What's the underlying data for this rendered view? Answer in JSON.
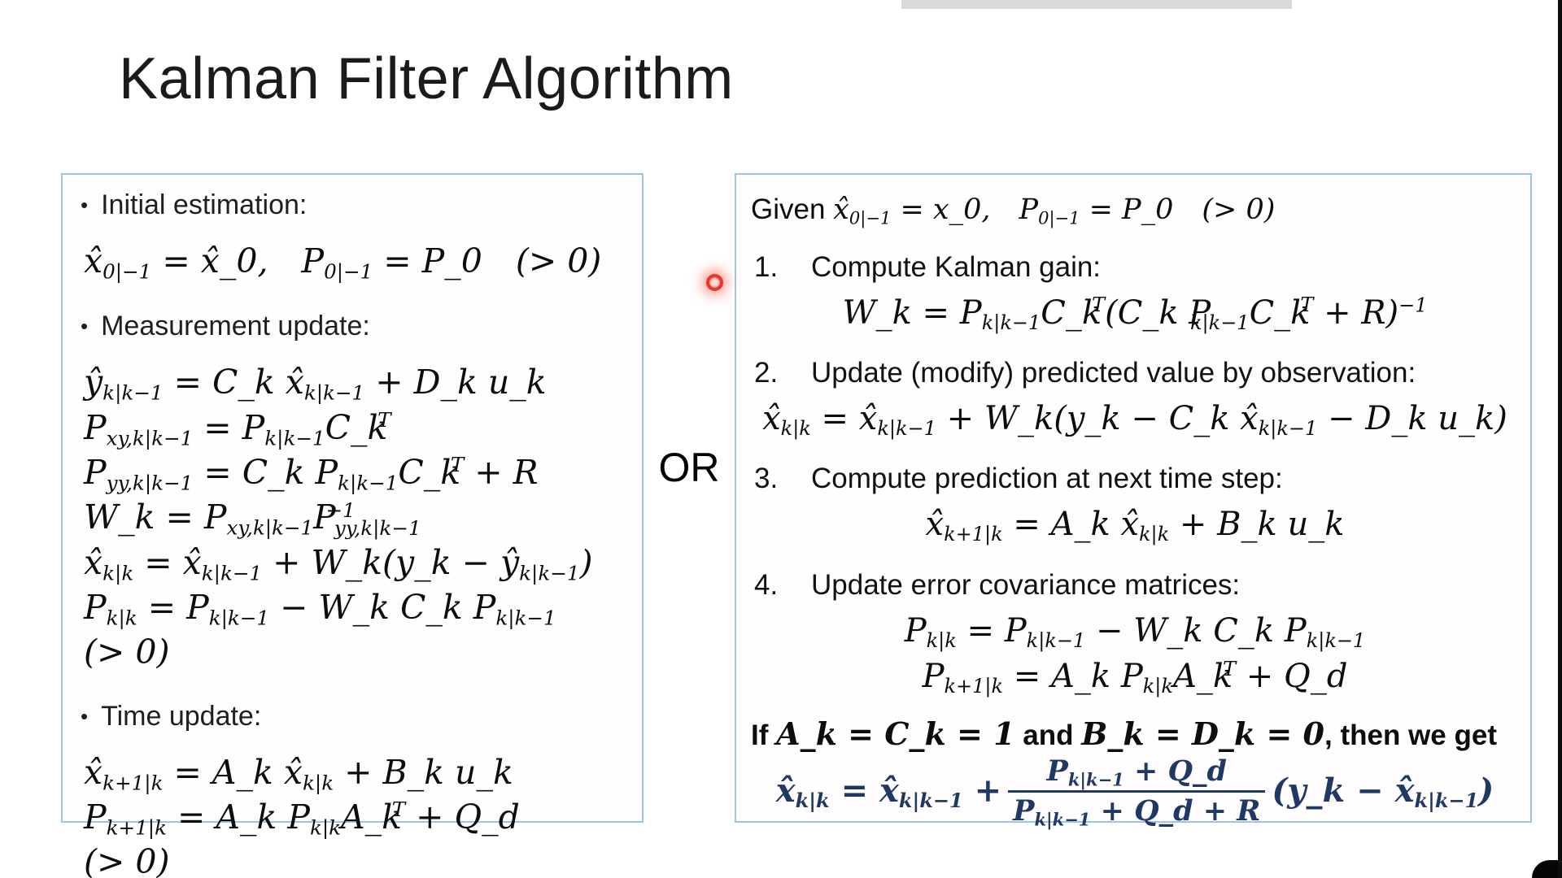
{
  "slide": {
    "title": "Kalman Filter Algorithm"
  },
  "divider": {
    "or_label": "OR"
  },
  "colors": {
    "panel_border": "#9dc3e6",
    "highlight_navy": "#1f3864",
    "laser_red": "#e8362a",
    "top_strip_gray": "#d9d9d9"
  },
  "left_panel": {
    "bullet_char": "•",
    "bullet_initial": "Initial estimation:",
    "initial_formula": "x̂_{0|−1} = x̂_0,  P_{0|−1} = P_0  (> 0)",
    "bullet_measurement": "Measurement update:",
    "measurement_formulas": [
      "ŷ_{k|k−1} = C_k x̂_{k|k−1} + D_k u_k",
      "P_{xy,k|k−1} = P_{k|k−1}C_k^{T}",
      "P_{yy,k|k−1} = C_k P_{k|k−1}C_k^{T} + R",
      "W_k = P_{xy,k|k−1}P^{−1}_{yy,k|k−1}",
      "x̂_{k|k} = x̂_{k|k−1} + W_k(y_k − ŷ_{k|k−1})",
      "P_{k|k} = P_{k|k−1} − W_k C_k P_{k|k−1}  (> 0)"
    ],
    "bullet_time": "Time update:",
    "time_formulas": [
      "x̂_{k+1|k} = A_k x̂_{k|k} + B_k u_k",
      "P_{k+1|k} = A_k P_{k|k}A_k^{T} + Q_d  (> 0)"
    ]
  },
  "right_panel": {
    "given_line": "[[Given ]]x̂_{0|−1} = x_0,  P_{0|−1} = P_0  (> 0)",
    "steps": [
      {
        "num": "1.",
        "label": "Compute Kalman gain:",
        "formula": "W_k = P_{k|k−1}C_k^{T}(C_k P_{k|k−1}C_k^{T} + R)^{−1}"
      },
      {
        "num": "2.",
        "label": "Update (modify) predicted value by observation:",
        "formula": "x̂_{k|k} = x̂_{k|k−1} + W_k(y_k − C_k x̂_{k|k−1} − D_k u_k)"
      },
      {
        "num": "3.",
        "label": "Compute prediction at next time step:",
        "formula": "x̂_{k+1|k} = A_k x̂_{k|k} + B_k u_k"
      },
      {
        "num": "4.",
        "label": "Update error covariance matrices:",
        "formula": "P_{k|k} = P_{k|k−1} − W_k C_k P_{k|k−1}",
        "formula2": "P_{k+1|k} = A_k P_{k|k}A_k^{T} + Q_d"
      }
    ],
    "conclusion": {
      "condition_line": "[[If ]]A_k = C_k = 1[[ and ]]B_k = D_k = 0[[, then we get]]",
      "result_prefix": "x̂_{k|k} = x̂_{k|k−1} +",
      "frac_num": "P_{k|k−1} + Q_d",
      "frac_den": "P_{k|k−1} + Q_d + R",
      "result_suffix": "(y_k − x̂_{k|k−1})"
    }
  }
}
